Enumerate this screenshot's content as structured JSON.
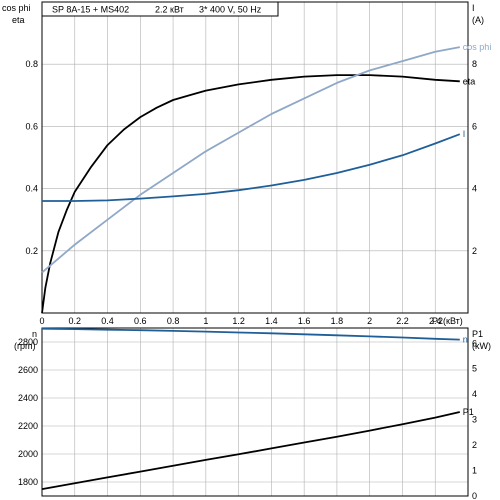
{
  "title_box": {
    "model": "SP 8A-15 + MS402",
    "power": "2.2 кВт",
    "supply": "3* 400 V, 50 Hz"
  },
  "colors": {
    "eta": "#000000",
    "cos_phi": "#8fa8c8",
    "current": "#1f5f99",
    "speed": "#1f5f99",
    "p1": "#000000",
    "grid": "#b0b0b0",
    "frame": "#000000"
  },
  "chart_data": [
    {
      "type": "line",
      "name": "upper",
      "xlabel": "P2(кВт)",
      "xlim": [
        0,
        2.6
      ],
      "xticks": [
        0,
        0.2,
        0.4,
        0.6,
        0.8,
        1,
        1.2,
        1.4,
        1.6,
        1.8,
        2,
        2.2,
        2.4
      ],
      "xtick_labels": [
        "0",
        "0.2",
        "0.4",
        "0.6",
        "0.8",
        "1",
        "1.2",
        "1.4",
        "1.6",
        "1.8",
        "2",
        "2.2",
        "2.4"
      ],
      "left_axis": {
        "label_top": "cos phi",
        "label_bottom": "eta",
        "ylim": [
          0,
          1.0
        ],
        "ticks": [
          0.2,
          0.4,
          0.6,
          0.8
        ],
        "tick_labels": [
          "0.2",
          "0.4",
          "0.6",
          "0.8"
        ]
      },
      "right_axis": {
        "label_top": "I",
        "label_bottom": "(A)",
        "ylim": [
          0,
          10
        ],
        "ticks": [
          2,
          4,
          6,
          8
        ],
        "tick_labels": [
          "2",
          "4",
          "6",
          "8"
        ]
      },
      "series": [
        {
          "name": "eta",
          "axis": "left",
          "color_key": "eta",
          "x": [
            0,
            0.02,
            0.05,
            0.1,
            0.15,
            0.2,
            0.3,
            0.4,
            0.5,
            0.6,
            0.7,
            0.8,
            0.9,
            1.0,
            1.2,
            1.4,
            1.6,
            1.8,
            2.0,
            2.2,
            2.4,
            2.55
          ],
          "y": [
            0,
            0.08,
            0.16,
            0.26,
            0.33,
            0.39,
            0.47,
            0.54,
            0.59,
            0.63,
            0.66,
            0.685,
            0.7,
            0.715,
            0.735,
            0.75,
            0.76,
            0.765,
            0.765,
            0.76,
            0.75,
            0.745
          ]
        },
        {
          "name": "cos phi",
          "axis": "left",
          "color_key": "cos_phi",
          "x": [
            0,
            0.2,
            0.4,
            0.6,
            0.8,
            1.0,
            1.2,
            1.4,
            1.6,
            1.8,
            2.0,
            2.2,
            2.4,
            2.55
          ],
          "y": [
            0.13,
            0.22,
            0.3,
            0.38,
            0.45,
            0.52,
            0.58,
            0.64,
            0.69,
            0.74,
            0.78,
            0.81,
            0.84,
            0.855
          ]
        },
        {
          "name": "I",
          "axis": "right",
          "color_key": "current",
          "x": [
            0,
            0.2,
            0.4,
            0.6,
            0.8,
            1.0,
            1.2,
            1.4,
            1.6,
            1.8,
            2.0,
            2.2,
            2.4,
            2.55
          ],
          "y": [
            3.6,
            3.6,
            3.62,
            3.68,
            3.75,
            3.83,
            3.95,
            4.1,
            4.28,
            4.5,
            4.77,
            5.07,
            5.45,
            5.75
          ]
        }
      ]
    },
    {
      "type": "line",
      "name": "lower",
      "xlim": [
        0,
        2.6
      ],
      "xticks": [
        0,
        0.2,
        0.4,
        0.6,
        0.8,
        1,
        1.2,
        1.4,
        1.6,
        1.8,
        2,
        2.2,
        2.4
      ],
      "left_axis": {
        "label_top": "n",
        "label_bottom": "(rpm)",
        "ylim": [
          1700,
          2900
        ],
        "ticks": [
          1800,
          2000,
          2200,
          2400,
          2600,
          2800
        ],
        "tick_labels": [
          "1800",
          "2000",
          "2200",
          "2400",
          "2600",
          "2800"
        ]
      },
      "right_axis": {
        "label_top": "P1",
        "label_bottom": "(kW)",
        "ylim": [
          0,
          6.6
        ],
        "ticks": [
          0,
          1,
          2,
          3,
          4,
          5,
          6
        ],
        "tick_labels": [
          "0",
          "1",
          "2",
          "3",
          "4",
          "5",
          "6"
        ]
      },
      "series": [
        {
          "name": "n",
          "axis": "left",
          "color_key": "speed",
          "x": [
            0,
            0.2,
            0.4,
            0.6,
            0.8,
            1.0,
            1.2,
            1.4,
            1.6,
            1.8,
            2.0,
            2.2,
            2.4,
            2.55
          ],
          "y": [
            2895,
            2892,
            2888,
            2884,
            2879,
            2874,
            2868,
            2862,
            2855,
            2848,
            2840,
            2832,
            2823,
            2817
          ]
        },
        {
          "name": "P1",
          "axis": "right",
          "color_key": "p1",
          "x": [
            0,
            0.2,
            0.4,
            0.6,
            0.8,
            1.0,
            1.2,
            1.4,
            1.6,
            1.8,
            2.0,
            2.2,
            2.4,
            2.55
          ],
          "y": [
            0.27,
            0.5,
            0.73,
            0.96,
            1.19,
            1.42,
            1.64,
            1.87,
            2.1,
            2.33,
            2.57,
            2.82,
            3.08,
            3.3
          ]
        }
      ]
    }
  ]
}
